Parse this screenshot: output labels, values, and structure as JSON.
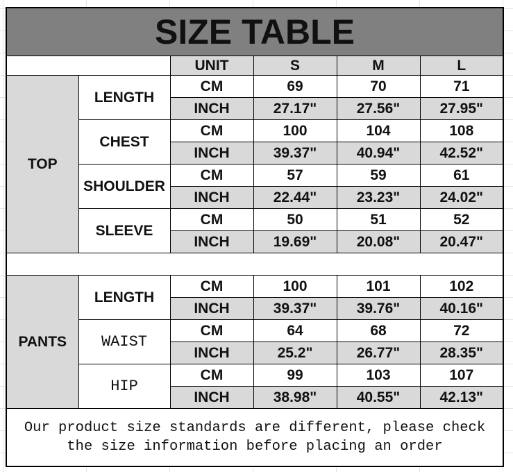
{
  "title": "SIZE TABLE",
  "header": {
    "unit": "UNIT",
    "sizes": [
      "S",
      "M",
      "L"
    ]
  },
  "sections": [
    {
      "name": "TOP",
      "measures": [
        {
          "name": "LENGTH",
          "rows": [
            {
              "unit": "CM",
              "values": [
                "69",
                "70",
                "71"
              ]
            },
            {
              "unit": "INCH",
              "values": [
                "27.17\"",
                "27.56\"",
                "27.95\""
              ]
            }
          ]
        },
        {
          "name": "CHEST",
          "rows": [
            {
              "unit": "CM",
              "values": [
                "100",
                "104",
                "108"
              ]
            },
            {
              "unit": "INCH",
              "values": [
                "39.37\"",
                "40.94\"",
                "42.52\""
              ]
            }
          ]
        },
        {
          "name": "SHOULDER",
          "rows": [
            {
              "unit": "CM",
              "values": [
                "57",
                "59",
                "61"
              ]
            },
            {
              "unit": "INCH",
              "values": [
                "22.44\"",
                "23.23\"",
                "24.02\""
              ]
            }
          ]
        },
        {
          "name": "SLEEVE",
          "rows": [
            {
              "unit": "CM",
              "values": [
                "50",
                "51",
                "52"
              ]
            },
            {
              "unit": "INCH",
              "values": [
                "19.69\"",
                "20.08\"",
                "20.47\""
              ]
            }
          ]
        }
      ]
    },
    {
      "name": "PANTS",
      "measures": [
        {
          "name": "LENGTH",
          "rows": [
            {
              "unit": "CM",
              "values": [
                "100",
                "101",
                "102"
              ]
            },
            {
              "unit": "INCH",
              "values": [
                "39.37\"",
                "39.76\"",
                "40.16\""
              ]
            }
          ]
        },
        {
          "name": "WAIST",
          "rows": [
            {
              "unit": "CM",
              "values": [
                "64",
                "68",
                "72"
              ]
            },
            {
              "unit": "INCH",
              "values": [
                "25.2\"",
                "26.77\"",
                "28.35\""
              ]
            }
          ]
        },
        {
          "name": "HIP",
          "rows": [
            {
              "unit": "CM",
              "values": [
                "99",
                "103",
                "107"
              ]
            },
            {
              "unit": "INCH",
              "values": [
                "38.98\"",
                "40.55\"",
                "42.13\""
              ]
            }
          ]
        }
      ]
    }
  ],
  "footer": {
    "line1": "Our product size standards are different, please check",
    "line2": "the size information before placing an order"
  }
}
